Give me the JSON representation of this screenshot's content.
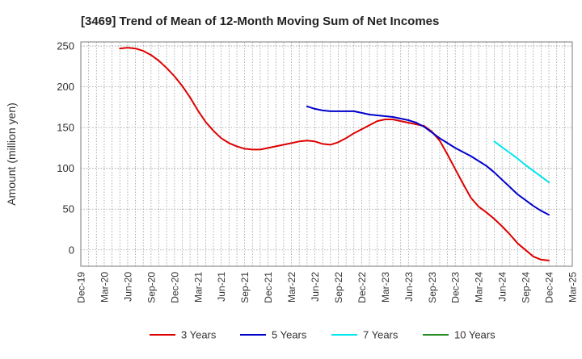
{
  "chart_data": {
    "type": "line",
    "title": "[3469]  Trend of Mean of 12-Month Moving Sum of Net Incomes",
    "xlabel": "",
    "ylabel": "Amount (million yen)",
    "ylim": [
      -20,
      255
    ],
    "yticks": [
      0,
      50,
      100,
      150,
      200,
      250
    ],
    "grid": true,
    "legend_position": "bottom",
    "x_tick_labels": [
      "Dec-19",
      "Mar-20",
      "Jun-20",
      "Sep-20",
      "Dec-20",
      "Mar-21",
      "Jun-21",
      "Sep-21",
      "Dec-21",
      "Mar-22",
      "Jun-22",
      "Sep-22",
      "Dec-22",
      "Mar-23",
      "Jun-23",
      "Sep-23",
      "Dec-23",
      "Mar-24",
      "Jun-24",
      "Sep-24",
      "Dec-24",
      "Mar-25"
    ],
    "x_start": "2019-12",
    "x_end": "2025-03",
    "series": [
      {
        "name": "3 Years",
        "color": "#dd0000",
        "x": [
          "2020-05",
          "2020-06",
          "2020-07",
          "2020-08",
          "2020-09",
          "2020-10",
          "2020-11",
          "2020-12",
          "2021-01",
          "2021-02",
          "2021-03",
          "2021-04",
          "2021-05",
          "2021-06",
          "2021-07",
          "2021-08",
          "2021-09",
          "2021-10",
          "2021-11",
          "2021-12",
          "2022-01",
          "2022-02",
          "2022-03",
          "2022-04",
          "2022-05",
          "2022-06",
          "2022-07",
          "2022-08",
          "2022-09",
          "2022-10",
          "2022-11",
          "2022-12",
          "2023-01",
          "2023-02",
          "2023-03",
          "2023-04",
          "2023-05",
          "2023-06",
          "2023-07",
          "2023-08",
          "2023-09",
          "2023-10",
          "2023-11",
          "2023-12",
          "2024-01",
          "2024-02",
          "2024-03",
          "2024-04",
          "2024-05",
          "2024-06",
          "2024-07",
          "2024-08",
          "2024-09",
          "2024-10",
          "2024-11",
          "2024-12"
        ],
        "values": [
          247,
          248,
          247,
          244,
          239,
          232,
          223,
          213,
          201,
          187,
          171,
          157,
          146,
          137,
          131,
          127,
          124,
          123,
          123,
          125,
          127,
          129,
          131,
          133,
          134,
          133,
          130,
          129,
          132,
          137,
          143,
          148,
          153,
          158,
          160,
          160,
          158,
          156,
          154,
          152,
          145,
          134,
          117,
          99,
          81,
          64,
          53,
          46,
          38,
          29,
          19,
          8,
          0,
          -8,
          -12,
          -13
        ],
        "legend_label": "3 Years"
      },
      {
        "name": "5 Years",
        "color": "#0000cc",
        "x": [
          "2022-05",
          "2022-06",
          "2022-07",
          "2022-08",
          "2022-09",
          "2022-10",
          "2022-11",
          "2022-12",
          "2023-01",
          "2023-02",
          "2023-03",
          "2023-04",
          "2023-05",
          "2023-06",
          "2023-07",
          "2023-08",
          "2023-09",
          "2023-10",
          "2023-11",
          "2023-12",
          "2024-01",
          "2024-02",
          "2024-03",
          "2024-04",
          "2024-05",
          "2024-06",
          "2024-07",
          "2024-08",
          "2024-09",
          "2024-10",
          "2024-11",
          "2024-12"
        ],
        "values": [
          176,
          173,
          171,
          170,
          170,
          170,
          170,
          168,
          166,
          165,
          164,
          163,
          161,
          159,
          156,
          151,
          144,
          137,
          131,
          125,
          120,
          115,
          109,
          103,
          95,
          86,
          77,
          68,
          61,
          54,
          48,
          43
        ],
        "legend_label": "5 Years"
      },
      {
        "name": "7 Years",
        "color": "#00e5ee",
        "x": [
          "2024-05",
          "2024-06",
          "2024-07",
          "2024-08",
          "2024-09",
          "2024-10",
          "2024-11",
          "2024-12"
        ],
        "values": [
          133,
          126,
          119,
          112,
          104,
          97,
          90,
          83
        ],
        "legend_label": "7 Years"
      },
      {
        "name": "10 Years",
        "color": "#228b22",
        "x": [],
        "values": [],
        "legend_label": "10 Years"
      }
    ]
  }
}
